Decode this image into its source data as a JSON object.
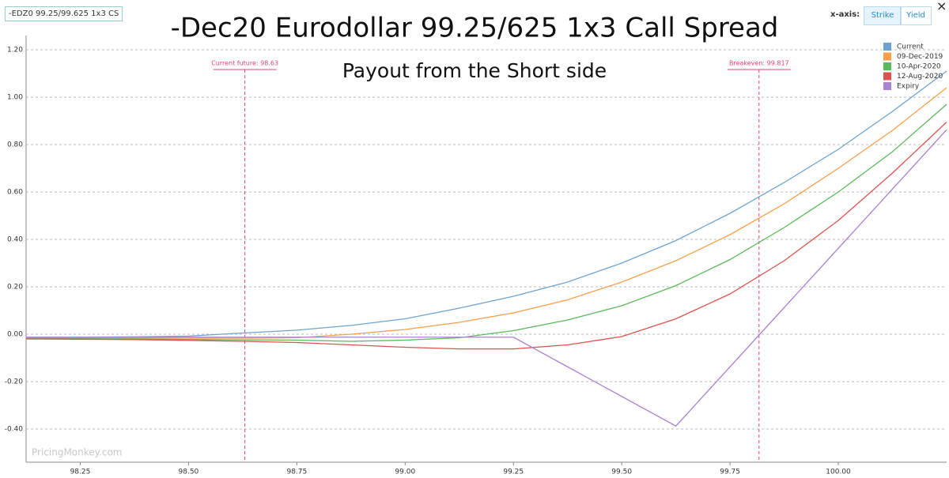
{
  "ui": {
    "instrument": "-EDZ0 99.25/99.625 1x3 CS",
    "x_axis_label": "x-axis:",
    "toggles": [
      "Strike",
      "Yield"
    ],
    "close": "×",
    "watermark": "PricingMonkey.com"
  },
  "chart_data": {
    "type": "line",
    "title": "-Dec20 Eurodollar 99.25/625 1x3 Call Spread",
    "subtitle": "Payout from the Short side",
    "x": [
      98.125,
      98.25,
      98.375,
      98.5,
      98.625,
      98.75,
      98.875,
      99.0,
      99.125,
      99.25,
      99.375,
      99.5,
      99.625,
      99.75,
      99.875,
      100.0,
      100.125,
      100.25
    ],
    "series": [
      {
        "name": "Current",
        "color": "#6fa3cf",
        "values": [
          -0.012,
          -0.012,
          -0.011,
          -0.008,
          0.005,
          0.017,
          0.037,
          0.065,
          0.11,
          0.16,
          0.22,
          0.3,
          0.395,
          0.51,
          0.64,
          0.78,
          0.94,
          1.11
        ]
      },
      {
        "name": "09-Dec-2019",
        "color": "#f7a04c",
        "values": [
          -0.015,
          -0.015,
          -0.016,
          -0.017,
          -0.017,
          -0.015,
          0.0,
          0.02,
          0.05,
          0.09,
          0.145,
          0.22,
          0.31,
          0.42,
          0.55,
          0.7,
          0.86,
          1.04
        ]
      },
      {
        "name": "10-Apr-2020",
        "color": "#5cb85c",
        "values": [
          -0.018,
          -0.019,
          -0.02,
          -0.022,
          -0.024,
          -0.025,
          -0.03,
          -0.025,
          -0.015,
          0.015,
          0.06,
          0.12,
          0.205,
          0.315,
          0.45,
          0.6,
          0.77,
          0.97
        ]
      },
      {
        "name": "12-Aug-2020",
        "color": "#d9534f",
        "values": [
          -0.02,
          -0.021,
          -0.023,
          -0.026,
          -0.03,
          -0.035,
          -0.045,
          -0.055,
          -0.062,
          -0.062,
          -0.045,
          -0.01,
          0.065,
          0.17,
          0.31,
          0.48,
          0.68,
          0.895
        ]
      },
      {
        "name": "Expiry",
        "color": "#a984cf",
        "values": [
          -0.0125,
          -0.0125,
          -0.0125,
          -0.0125,
          -0.0125,
          -0.0125,
          -0.0125,
          -0.0125,
          -0.0125,
          -0.0125,
          -0.1375,
          -0.2625,
          -0.3875,
          -0.1375,
          0.1125,
          0.3625,
          0.6125,
          0.8625
        ]
      }
    ],
    "xlim": [
      98.125,
      100.25
    ],
    "ylim": [
      -0.54,
      1.26
    ],
    "xticks": [
      {
        "value": 98.25,
        "label": "98.25"
      },
      {
        "value": 98.5,
        "label": "98.50"
      },
      {
        "value": 98.75,
        "label": "98.75"
      },
      {
        "value": 99.0,
        "label": "99.00"
      },
      {
        "value": 99.25,
        "label": "99.25"
      },
      {
        "value": 99.5,
        "label": "99.50"
      },
      {
        "value": 99.75,
        "label": "99.75"
      },
      {
        "value": 100.0,
        "label": "100.00"
      }
    ],
    "yticks": [
      {
        "value": -0.4,
        "label": "-0.40"
      },
      {
        "value": -0.2,
        "label": "-0.20"
      },
      {
        "value": 0,
        "label": "0.00"
      },
      {
        "value": 0.2,
        "label": "0.20"
      },
      {
        "value": 0.4,
        "label": "0.40"
      },
      {
        "value": 0.6,
        "label": "0.60"
      },
      {
        "value": 0.8,
        "label": "0.80"
      },
      {
        "value": 1.0,
        "label": "1.00"
      },
      {
        "value": 1.2,
        "label": "1.20"
      }
    ],
    "grid": true,
    "legend": "top-right",
    "annotations": [
      {
        "label": "Current future: 98.63",
        "x": 98.63,
        "color": "#e8407a"
      },
      {
        "label": "Breakeven: 99.817",
        "x": 99.817,
        "color": "#e8407a"
      }
    ]
  }
}
